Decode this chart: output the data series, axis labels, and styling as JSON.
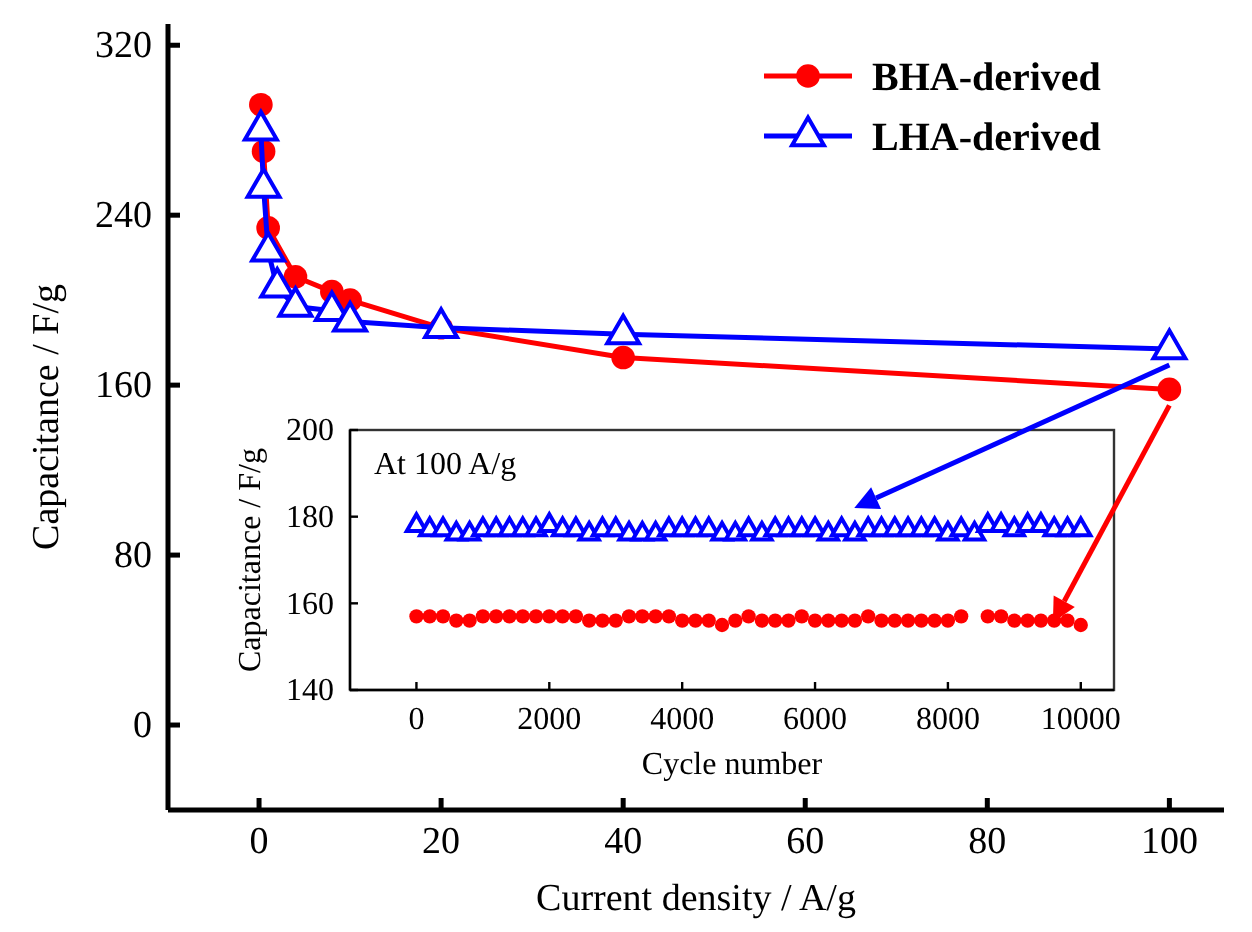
{
  "chart_data": [
    {
      "type": "line",
      "xlabel": "Current density / A/g",
      "ylabel": "Capacitance / F/g",
      "xlim": [
        -10,
        106
      ],
      "xticks": [
        0,
        20,
        40,
        60,
        80,
        100
      ],
      "ylim": [
        -40,
        330
      ],
      "yticks": [
        0,
        80,
        160,
        240,
        320
      ],
      "legend": "top right",
      "grid": false,
      "line_style": "solid",
      "series": [
        {
          "name": "BHA-derived",
          "color": "#ff0000",
          "marker": "circle",
          "x": [
            0.2,
            0.5,
            1,
            4,
            8,
            10,
            20,
            40,
            100
          ],
          "values": [
            292,
            270,
            234,
            211,
            204,
            200,
            187,
            173,
            158
          ]
        },
        {
          "name": "LHA-derived",
          "color": "#0000ff",
          "marker": "triangle",
          "x": [
            0.2,
            0.5,
            1,
            2,
            4,
            8,
            10,
            20,
            40,
            100
          ],
          "values": [
            280,
            253,
            223,
            206,
            197,
            195,
            190,
            187,
            184,
            177
          ]
        }
      ]
    },
    {
      "type": "scatter",
      "xlabel": "Cycle number",
      "ylabel": "Capacitance / F/g",
      "xlim": [
        -1000,
        10500
      ],
      "xticks": [
        0,
        2000,
        4000,
        6000,
        8000,
        10000
      ],
      "ylim": [
        140,
        200
      ],
      "yticks": [
        140,
        160,
        180,
        200
      ],
      "grid": false,
      "annotations": [
        "At 100 A/g"
      ],
      "series": [
        {
          "color": "#0000ff",
          "marker": "triangle",
          "x": [
            0,
            200,
            400,
            600,
            800,
            1000,
            1200,
            1400,
            1600,
            1800,
            2000,
            2200,
            2400,
            2600,
            2800,
            3000,
            3200,
            3400,
            3600,
            3800,
            4000,
            4200,
            4400,
            4600,
            4800,
            5000,
            5200,
            5400,
            5600,
            5800,
            6000,
            6200,
            6400,
            6600,
            6800,
            7000,
            7200,
            7400,
            7600,
            7800,
            8000,
            8200,
            8400,
            8600,
            8800,
            9000,
            9200,
            9400,
            9600,
            9800,
            10000
          ],
          "values": [
            178,
            177,
            177,
            176,
            176,
            177,
            177,
            177,
            177,
            177,
            178,
            177,
            177,
            176,
            177,
            177,
            176,
            176,
            176,
            177,
            177,
            177,
            177,
            176,
            176,
            177,
            176,
            177,
            177,
            177,
            177,
            176,
            177,
            176,
            177,
            177,
            177,
            177,
            177,
            177,
            176,
            177,
            176,
            178,
            178,
            177,
            178,
            178,
            177,
            177,
            177
          ]
        },
        {
          "color": "#ff0000",
          "marker": "circle",
          "x": [
            0,
            200,
            400,
            600,
            800,
            1000,
            1200,
            1400,
            1600,
            1800,
            2000,
            2200,
            2400,
            2600,
            2800,
            3000,
            3200,
            3400,
            3600,
            3800,
            4000,
            4200,
            4400,
            4600,
            4800,
            5000,
            5200,
            5400,
            5600,
            5800,
            6000,
            6200,
            6400,
            6600,
            6800,
            7000,
            7200,
            7400,
            7600,
            7800,
            8000,
            8200,
            8600,
            8800,
            9000,
            9200,
            9400,
            9600,
            9800,
            10000
          ],
          "values": [
            157,
            157,
            157,
            156,
            156,
            157,
            157,
            157,
            157,
            157,
            157,
            157,
            157,
            156,
            156,
            156,
            157,
            157,
            157,
            157,
            156,
            156,
            156,
            155,
            156,
            157,
            156,
            156,
            156,
            157,
            156,
            156,
            156,
            156,
            157,
            156,
            156,
            156,
            156,
            156,
            156,
            157,
            157,
            157,
            156,
            156,
            156,
            156,
            156,
            155
          ]
        }
      ]
    }
  ]
}
